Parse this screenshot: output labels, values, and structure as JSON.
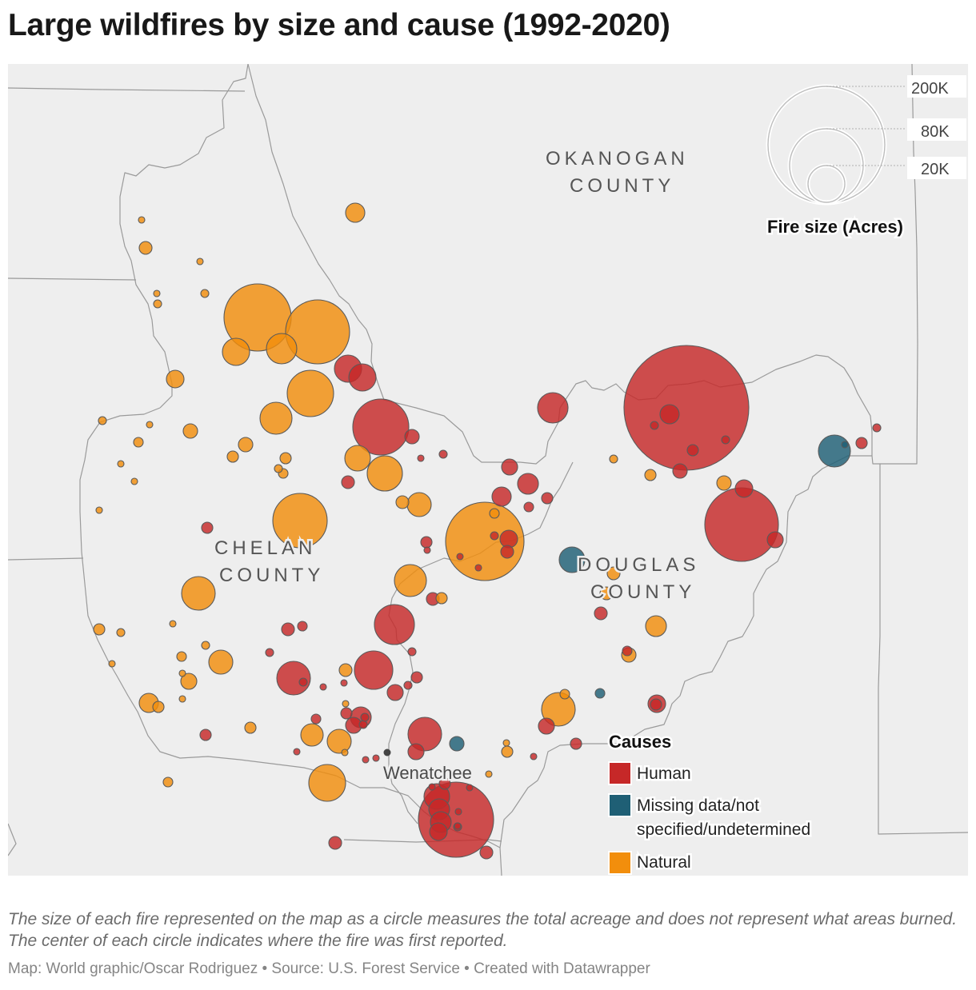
{
  "title": "Large wildfires by size and cause (1992-2020)",
  "counties": {
    "okanogan": [
      "OKANOGAN",
      "COUNTY"
    ],
    "chelan": [
      "CHELAN",
      "COUNTY"
    ],
    "douglas": [
      "DOUGLAS",
      "COUNTY"
    ]
  },
  "city": "Wenatchee",
  "size_legend": {
    "title": "Fire size (Acres)",
    "labels": [
      "200K",
      "80K",
      "20K"
    ]
  },
  "cause_legend": {
    "title": "Causes",
    "items": [
      {
        "key": "human",
        "label": [
          "Human"
        ]
      },
      {
        "key": "missing",
        "label": [
          "Missing data/not",
          "specified/undetermined"
        ]
      },
      {
        "key": "natural",
        "label": [
          "Natural"
        ]
      }
    ]
  },
  "colors": {
    "human": "#c62828",
    "missing": "#1f5f75",
    "natural": "#f28e0c",
    "land": "#eeeeee",
    "border": "#9a9a9a"
  },
  "note": "The size of each fire represented on the map as a circle measures the total acreage and does not represent what areas burned. The center of each circle indicates where the fire was first reported.",
  "credit": "Map: World graphic/Oscar Rodriguez • Source: U.S. Forest Service • Created with Datawrapper"
}
